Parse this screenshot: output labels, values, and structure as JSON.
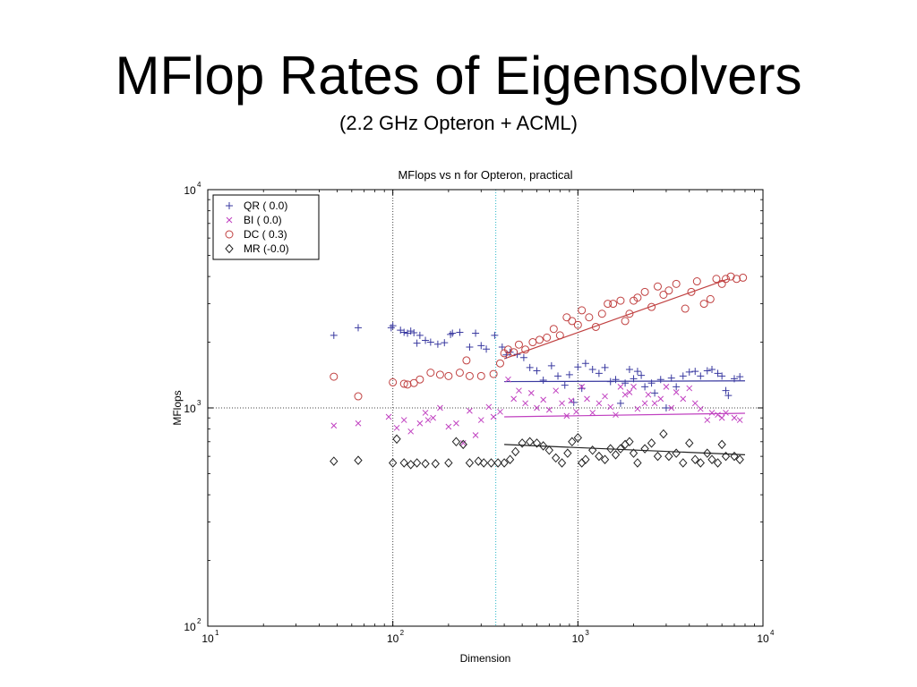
{
  "slide": {
    "title": "MFlop Rates of Eigensolvers",
    "subtitle": "(2.2 GHz Opteron + ACML)"
  },
  "chart_data": {
    "type": "scatter",
    "title": "MFlops vs n for Opteron, practical",
    "xlabel": "Dimension",
    "ylabel": "MFlops",
    "xscale": "log",
    "yscale": "log",
    "xlim": [
      10,
      10000
    ],
    "ylim": [
      100,
      10000
    ],
    "x_ticks": [
      {
        "value": 10,
        "base": "10",
        "exp": "1"
      },
      {
        "value": 100,
        "base": "10",
        "exp": "2"
      },
      {
        "value": 1000,
        "base": "10",
        "exp": "3"
      },
      {
        "value": 10000,
        "base": "10",
        "exp": "4"
      }
    ],
    "y_ticks": [
      {
        "value": 100,
        "base": "10",
        "exp": "2"
      },
      {
        "value": 1000,
        "base": "10",
        "exp": "3"
      },
      {
        "value": 10000,
        "base": "10",
        "exp": "4"
      }
    ],
    "grid": "dotted lines at x=100, x=1000 and y=1000; cyan dotted line at x=360",
    "reference_lines": [
      {
        "axis": "x",
        "value": 100,
        "color": "#444444"
      },
      {
        "axis": "x",
        "value": 1000,
        "color": "#444444"
      },
      {
        "axis": "x",
        "value": 360,
        "color": "#29b6c8"
      },
      {
        "axis": "y",
        "value": 1000,
        "color": "#444444"
      }
    ],
    "legend_position": "top-left",
    "series": [
      {
        "name": "QR  ( 0.0)",
        "marker": "plus",
        "color": "#3a3aa0",
        "fit": {
          "x": [
            400,
            8000
          ],
          "y": [
            1320,
            1330
          ]
        },
        "points": [
          [
            48,
            2150
          ],
          [
            65,
            2330
          ],
          [
            98,
            2330
          ],
          [
            100,
            2380
          ],
          [
            110,
            2270
          ],
          [
            115,
            2220
          ],
          [
            120,
            2200
          ],
          [
            125,
            2250
          ],
          [
            130,
            2210
          ],
          [
            135,
            1980
          ],
          [
            140,
            2150
          ],
          [
            150,
            2040
          ],
          [
            160,
            2000
          ],
          [
            175,
            1960
          ],
          [
            190,
            1990
          ],
          [
            205,
            2170
          ],
          [
            210,
            2200
          ],
          [
            230,
            2220
          ],
          [
            260,
            1900
          ],
          [
            280,
            2200
          ],
          [
            300,
            1930
          ],
          [
            320,
            1860
          ],
          [
            355,
            2150
          ],
          [
            390,
            1900
          ],
          [
            410,
            1750
          ],
          [
            430,
            1800
          ],
          [
            470,
            1760
          ],
          [
            510,
            1700
          ],
          [
            550,
            1530
          ],
          [
            600,
            1480
          ],
          [
            650,
            1340
          ],
          [
            720,
            1560
          ],
          [
            780,
            1400
          ],
          [
            850,
            1270
          ],
          [
            900,
            1420
          ],
          [
            950,
            1060
          ],
          [
            1000,
            1540
          ],
          [
            1050,
            1230
          ],
          [
            1100,
            1600
          ],
          [
            1200,
            1500
          ],
          [
            1300,
            1440
          ],
          [
            1400,
            1530
          ],
          [
            1500,
            1320
          ],
          [
            1600,
            1350
          ],
          [
            1700,
            1050
          ],
          [
            1800,
            1300
          ],
          [
            1900,
            1500
          ],
          [
            2000,
            1360
          ],
          [
            2100,
            1470
          ],
          [
            2200,
            1410
          ],
          [
            2300,
            1250
          ],
          [
            2500,
            1300
          ],
          [
            2600,
            1170
          ],
          [
            2800,
            1350
          ],
          [
            3000,
            1000
          ],
          [
            3200,
            1370
          ],
          [
            3400,
            1250
          ],
          [
            3700,
            1400
          ],
          [
            4000,
            1460
          ],
          [
            4300,
            1470
          ],
          [
            4600,
            1400
          ],
          [
            5000,
            1480
          ],
          [
            5300,
            1500
          ],
          [
            5700,
            1440
          ],
          [
            6000,
            1400
          ],
          [
            6300,
            1200
          ],
          [
            6500,
            1140
          ],
          [
            7000,
            1360
          ],
          [
            7500,
            1390
          ]
        ]
      },
      {
        "name": "BI  ( 0.0)",
        "marker": "cross",
        "color": "#c040c0",
        "fit": {
          "x": [
            400,
            8000
          ],
          "y": [
            910,
            945
          ]
        },
        "points": [
          [
            48,
            830
          ],
          [
            65,
            850
          ],
          [
            95,
            910
          ],
          [
            105,
            810
          ],
          [
            115,
            880
          ],
          [
            125,
            780
          ],
          [
            140,
            850
          ],
          [
            150,
            950
          ],
          [
            155,
            880
          ],
          [
            165,
            900
          ],
          [
            180,
            1000
          ],
          [
            200,
            820
          ],
          [
            220,
            850
          ],
          [
            240,
            690
          ],
          [
            260,
            970
          ],
          [
            280,
            750
          ],
          [
            300,
            880
          ],
          [
            330,
            1010
          ],
          [
            350,
            910
          ],
          [
            380,
            960
          ],
          [
            420,
            1350
          ],
          [
            450,
            1100
          ],
          [
            480,
            1200
          ],
          [
            520,
            1050
          ],
          [
            560,
            1170
          ],
          [
            600,
            1000
          ],
          [
            650,
            1090
          ],
          [
            700,
            980
          ],
          [
            760,
            1200
          ],
          [
            820,
            1050
          ],
          [
            870,
            920
          ],
          [
            920,
            1080
          ],
          [
            980,
            960
          ],
          [
            1050,
            1250
          ],
          [
            1120,
            1100
          ],
          [
            1200,
            950
          ],
          [
            1300,
            1050
          ],
          [
            1400,
            1130
          ],
          [
            1500,
            1010
          ],
          [
            1600,
            930
          ],
          [
            1700,
            1250
          ],
          [
            1800,
            1150
          ],
          [
            1900,
            1180
          ],
          [
            2000,
            1250
          ],
          [
            2100,
            990
          ],
          [
            2300,
            1050
          ],
          [
            2400,
            1150
          ],
          [
            2600,
            1050
          ],
          [
            2800,
            1100
          ],
          [
            3000,
            1250
          ],
          [
            3200,
            1000
          ],
          [
            3400,
            1180
          ],
          [
            3700,
            1100
          ],
          [
            4000,
            1230
          ],
          [
            4300,
            1050
          ],
          [
            4600,
            990
          ],
          [
            5000,
            880
          ],
          [
            5300,
            950
          ],
          [
            5700,
            930
          ],
          [
            6000,
            900
          ],
          [
            6300,
            950
          ],
          [
            7000,
            900
          ],
          [
            7500,
            880
          ]
        ]
      },
      {
        "name": "DC  ( 0.3)",
        "marker": "circle",
        "color": "#c04040",
        "fit": {
          "x": [
            400,
            6500
          ],
          "y": [
            1680,
            3900
          ]
        },
        "points": [
          [
            48,
            1390
          ],
          [
            65,
            1130
          ],
          [
            100,
            1310
          ],
          [
            115,
            1290
          ],
          [
            120,
            1280
          ],
          [
            130,
            1300
          ],
          [
            140,
            1350
          ],
          [
            160,
            1450
          ],
          [
            180,
            1420
          ],
          [
            200,
            1400
          ],
          [
            230,
            1450
          ],
          [
            250,
            1650
          ],
          [
            260,
            1400
          ],
          [
            300,
            1400
          ],
          [
            350,
            1430
          ],
          [
            380,
            1600
          ],
          [
            400,
            1780
          ],
          [
            420,
            1850
          ],
          [
            450,
            1800
          ],
          [
            480,
            1950
          ],
          [
            520,
            1850
          ],
          [
            570,
            2000
          ],
          [
            620,
            2050
          ],
          [
            680,
            2100
          ],
          [
            740,
            2300
          ],
          [
            800,
            2150
          ],
          [
            870,
            2600
          ],
          [
            930,
            2500
          ],
          [
            1000,
            2400
          ],
          [
            1050,
            2800
          ],
          [
            1150,
            2600
          ],
          [
            1250,
            2350
          ],
          [
            1350,
            2700
          ],
          [
            1450,
            3000
          ],
          [
            1550,
            3000
          ],
          [
            1700,
            3100
          ],
          [
            1800,
            2500
          ],
          [
            1900,
            2700
          ],
          [
            2000,
            3100
          ],
          [
            2100,
            3200
          ],
          [
            2300,
            3400
          ],
          [
            2500,
            2900
          ],
          [
            2700,
            3600
          ],
          [
            2900,
            3300
          ],
          [
            3100,
            3450
          ],
          [
            3400,
            3700
          ],
          [
            3800,
            2850
          ],
          [
            4100,
            3400
          ],
          [
            4400,
            3800
          ],
          [
            4800,
            3000
          ],
          [
            5200,
            3150
          ],
          [
            5600,
            3900
          ],
          [
            6000,
            3700
          ],
          [
            6300,
            3900
          ],
          [
            6700,
            4000
          ],
          [
            7200,
            3900
          ],
          [
            7800,
            3950
          ]
        ]
      },
      {
        "name": "MR  (-0.0)",
        "marker": "diamond",
        "color": "#222222",
        "fit": {
          "x": [
            400,
            8000
          ],
          "y": [
            680,
            610
          ]
        },
        "points": [
          [
            48,
            570
          ],
          [
            65,
            575
          ],
          [
            100,
            560
          ],
          [
            105,
            720
          ],
          [
            115,
            560
          ],
          [
            125,
            550
          ],
          [
            135,
            560
          ],
          [
            150,
            555
          ],
          [
            170,
            555
          ],
          [
            200,
            560
          ],
          [
            220,
            700
          ],
          [
            240,
            680
          ],
          [
            260,
            560
          ],
          [
            290,
            570
          ],
          [
            310,
            560
          ],
          [
            340,
            560
          ],
          [
            370,
            560
          ],
          [
            400,
            560
          ],
          [
            430,
            580
          ],
          [
            460,
            630
          ],
          [
            500,
            690
          ],
          [
            550,
            700
          ],
          [
            600,
            690
          ],
          [
            650,
            670
          ],
          [
            700,
            640
          ],
          [
            760,
            590
          ],
          [
            820,
            560
          ],
          [
            880,
            620
          ],
          [
            930,
            700
          ],
          [
            1000,
            730
          ],
          [
            1050,
            560
          ],
          [
            1100,
            580
          ],
          [
            1200,
            640
          ],
          [
            1300,
            600
          ],
          [
            1400,
            580
          ],
          [
            1500,
            650
          ],
          [
            1600,
            610
          ],
          [
            1700,
            650
          ],
          [
            1800,
            680
          ],
          [
            1900,
            700
          ],
          [
            2000,
            620
          ],
          [
            2100,
            560
          ],
          [
            2300,
            650
          ],
          [
            2500,
            690
          ],
          [
            2700,
            600
          ],
          [
            2900,
            760
          ],
          [
            3100,
            600
          ],
          [
            3400,
            620
          ],
          [
            3700,
            560
          ],
          [
            4000,
            690
          ],
          [
            4300,
            580
          ],
          [
            4600,
            560
          ],
          [
            5000,
            620
          ],
          [
            5300,
            580
          ],
          [
            5700,
            560
          ],
          [
            6000,
            680
          ],
          [
            6300,
            600
          ],
          [
            7000,
            600
          ],
          [
            7500,
            580
          ]
        ]
      }
    ]
  }
}
